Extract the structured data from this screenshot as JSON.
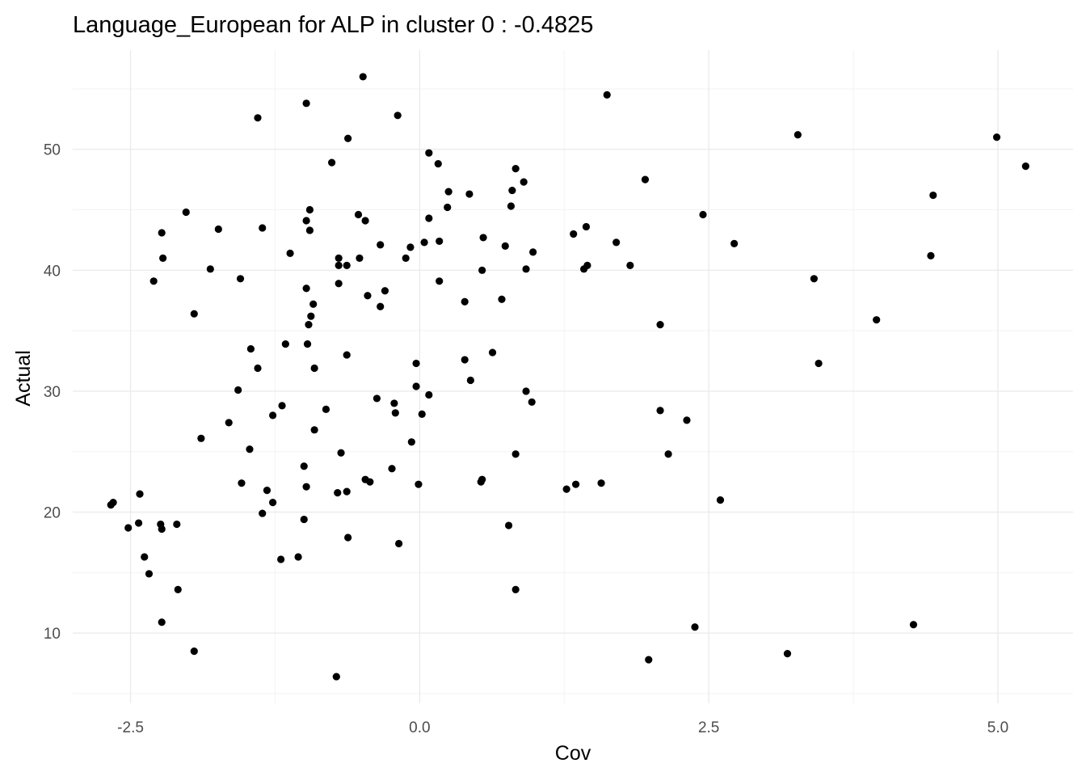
{
  "chart_data": {
    "type": "scatter",
    "title": "Language_European for ALP in cluster 0 : -0.4825",
    "xlabel": "Cov",
    "ylabel": "Actual",
    "xlim": [
      -3.0,
      5.65
    ],
    "ylim": [
      4.2,
      58.2
    ],
    "x_ticks": [
      -2.5,
      0.0,
      2.5,
      5.0
    ],
    "x_tick_labels": [
      "-2.5",
      "0.0",
      "2.5",
      "5.0"
    ],
    "y_ticks": [
      10,
      20,
      30,
      40,
      50
    ],
    "y_tick_labels": [
      "10",
      "20",
      "30",
      "40",
      "50"
    ],
    "grid": true,
    "point_color": "#000000",
    "points": [
      [
        -2.67,
        20.6
      ],
      [
        -2.65,
        20.8
      ],
      [
        -2.52,
        18.7
      ],
      [
        -2.43,
        19.1
      ],
      [
        -2.42,
        21.5
      ],
      [
        -2.38,
        16.3
      ],
      [
        -2.34,
        14.9
      ],
      [
        -2.3,
        39.1
      ],
      [
        -2.24,
        19.0
      ],
      [
        -2.23,
        18.6
      ],
      [
        -2.23,
        43.1
      ],
      [
        -2.22,
        41.0
      ],
      [
        -2.23,
        10.9
      ],
      [
        -2.1,
        19.0
      ],
      [
        -2.09,
        13.6
      ],
      [
        -2.02,
        44.8
      ],
      [
        -1.95,
        36.4
      ],
      [
        -1.95,
        8.5
      ],
      [
        -1.89,
        26.1
      ],
      [
        -1.81,
        40.1
      ],
      [
        -1.74,
        43.4
      ],
      [
        -1.65,
        27.4
      ],
      [
        -1.57,
        30.1
      ],
      [
        -1.54,
        22.4
      ],
      [
        -1.55,
        39.3
      ],
      [
        -1.47,
        25.2
      ],
      [
        -1.46,
        33.5
      ],
      [
        -1.4,
        31.9
      ],
      [
        -1.4,
        52.6
      ],
      [
        -1.36,
        43.5
      ],
      [
        -1.36,
        19.9
      ],
      [
        -1.32,
        21.8
      ],
      [
        -1.27,
        20.8
      ],
      [
        -1.27,
        28.0
      ],
      [
        -1.2,
        16.1
      ],
      [
        -1.19,
        28.8
      ],
      [
        -1.16,
        33.9
      ],
      [
        -1.12,
        41.4
      ],
      [
        -1.05,
        16.3
      ],
      [
        -1.0,
        23.8
      ],
      [
        -1.0,
        19.4
      ],
      [
        -0.98,
        22.1
      ],
      [
        -0.98,
        38.5
      ],
      [
        -0.98,
        44.1
      ],
      [
        -0.98,
        53.8
      ],
      [
        -0.97,
        33.9
      ],
      [
        -0.96,
        35.5
      ],
      [
        -0.95,
        43.3
      ],
      [
        -0.95,
        45.0
      ],
      [
        -0.94,
        36.2
      ],
      [
        -0.92,
        37.2
      ],
      [
        -0.91,
        31.9
      ],
      [
        -0.91,
        26.8
      ],
      [
        -0.81,
        28.5
      ],
      [
        -0.76,
        48.9
      ],
      [
        -0.72,
        6.4
      ],
      [
        -0.71,
        21.6
      ],
      [
        -0.7,
        38.9
      ],
      [
        -0.7,
        41.0
      ],
      [
        -0.7,
        40.4
      ],
      [
        -0.68,
        24.9
      ],
      [
        -0.63,
        33.0
      ],
      [
        -0.63,
        21.7
      ],
      [
        -0.62,
        17.9
      ],
      [
        -0.62,
        50.9
      ],
      [
        -0.63,
        40.4
      ],
      [
        -0.53,
        44.6
      ],
      [
        -0.52,
        41.0
      ],
      [
        -0.47,
        44.1
      ],
      [
        -0.47,
        22.7
      ],
      [
        -0.45,
        37.9
      ],
      [
        -0.43,
        22.5
      ],
      [
        -0.37,
        29.4
      ],
      [
        -0.34,
        37.0
      ],
      [
        -0.34,
        42.1
      ],
      [
        -0.3,
        38.3
      ],
      [
        -0.49,
        56.0
      ],
      [
        -0.24,
        23.6
      ],
      [
        -0.22,
        29.0
      ],
      [
        -0.21,
        28.2
      ],
      [
        -0.19,
        52.8
      ],
      [
        -0.18,
        17.4
      ],
      [
        -0.12,
        41.0
      ],
      [
        -0.08,
        41.9
      ],
      [
        -0.07,
        25.8
      ],
      [
        -0.03,
        30.4
      ],
      [
        -0.03,
        32.3
      ],
      [
        -0.01,
        22.3
      ],
      [
        0.02,
        28.1
      ],
      [
        0.04,
        42.3
      ],
      [
        0.08,
        29.7
      ],
      [
        0.08,
        44.3
      ],
      [
        0.08,
        49.7
      ],
      [
        0.16,
        48.8
      ],
      [
        0.17,
        42.4
      ],
      [
        0.17,
        39.1
      ],
      [
        0.24,
        45.2
      ],
      [
        0.25,
        46.5
      ],
      [
        0.39,
        37.4
      ],
      [
        0.39,
        32.6
      ],
      [
        0.43,
        46.3
      ],
      [
        0.44,
        30.9
      ],
      [
        0.53,
        22.5
      ],
      [
        0.54,
        22.7
      ],
      [
        0.54,
        40.0
      ],
      [
        0.55,
        42.7
      ],
      [
        0.63,
        33.2
      ],
      [
        0.71,
        37.6
      ],
      [
        0.74,
        42.0
      ],
      [
        0.77,
        18.9
      ],
      [
        0.79,
        45.3
      ],
      [
        0.8,
        46.6
      ],
      [
        0.83,
        48.4
      ],
      [
        0.83,
        24.8
      ],
      [
        0.83,
        13.6
      ],
      [
        0.9,
        47.3
      ],
      [
        0.92,
        40.1
      ],
      [
        0.92,
        30.0
      ],
      [
        0.97,
        29.1
      ],
      [
        0.98,
        41.5
      ],
      [
        1.27,
        21.9
      ],
      [
        1.33,
        43.0
      ],
      [
        1.35,
        22.3
      ],
      [
        1.42,
        40.1
      ],
      [
        1.44,
        43.6
      ],
      [
        1.45,
        40.4
      ],
      [
        1.57,
        22.4
      ],
      [
        1.62,
        54.5
      ],
      [
        1.7,
        42.3
      ],
      [
        1.82,
        40.4
      ],
      [
        1.95,
        47.5
      ],
      [
        1.98,
        7.8
      ],
      [
        2.08,
        35.5
      ],
      [
        2.08,
        28.4
      ],
      [
        2.15,
        24.8
      ],
      [
        2.31,
        27.6
      ],
      [
        2.38,
        10.5
      ],
      [
        2.45,
        44.6
      ],
      [
        2.6,
        21.0
      ],
      [
        2.72,
        42.2
      ],
      [
        3.18,
        8.3
      ],
      [
        3.27,
        51.2
      ],
      [
        3.41,
        39.3
      ],
      [
        3.45,
        32.3
      ],
      [
        3.95,
        35.9
      ],
      [
        4.27,
        10.7
      ],
      [
        4.42,
        41.2
      ],
      [
        4.44,
        46.2
      ],
      [
        4.99,
        51.0
      ],
      [
        5.24,
        48.6
      ]
    ]
  }
}
